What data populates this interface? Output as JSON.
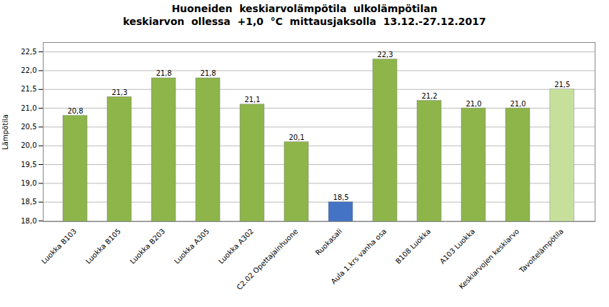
{
  "chart_data": {
    "type": "bar",
    "title": "Huoneiden  keskiarvolämpötila  ulkolämpötilan\nkeskiarvon  ollessa  +1,0  °C  mittausjaksolla  13.12.-27.12.2017",
    "ylabel": "Lämpötila",
    "categories": [
      "Luokka B103",
      "Luokka B105",
      "Luokka B203",
      "Luokka A305",
      "Luokka A302",
      "C2.02 Opettajainhuone",
      "Ruokasali",
      "Aula 1.krs vanha osa",
      "B108 Luokka",
      "A103 Luokka",
      "Keskiarvojen keskiarvo",
      "Tavoitelämpötila"
    ],
    "values": [
      20.8,
      21.3,
      21.8,
      21.8,
      21.1,
      20.1,
      18.5,
      22.3,
      21.2,
      21.0,
      21.0,
      21.5
    ],
    "value_labels": [
      "20,8",
      "21,3",
      "21,8",
      "21,8",
      "21,1",
      "20,1",
      "18,5",
      "22,3",
      "21,2",
      "21,0",
      "21,0",
      "21,5"
    ],
    "colors": [
      "#8db54a",
      "#8db54a",
      "#8db54a",
      "#8db54a",
      "#8db54a",
      "#8db54a",
      "#4472c4",
      "#8db54a",
      "#8db54a",
      "#8db54a",
      "#8db54a",
      "#c6e09c"
    ],
    "ylim": [
      17.98,
      22.75
    ],
    "yticks": [
      {
        "value": 18.0,
        "label": "18,0"
      },
      {
        "value": 18.5,
        "label": "18,5"
      },
      {
        "value": 19.0,
        "label": "19,0"
      },
      {
        "value": 19.5,
        "label": "19,5"
      },
      {
        "value": 20.0,
        "label": "20,0"
      },
      {
        "value": 20.5,
        "label": "20,5"
      },
      {
        "value": 21.0,
        "label": "21,0"
      },
      {
        "value": 21.5,
        "label": "21,5"
      },
      {
        "value": 22.0,
        "label": "22,0"
      },
      {
        "value": 22.5,
        "label": "22,5"
      }
    ],
    "grid": true,
    "data_labels": true
  }
}
